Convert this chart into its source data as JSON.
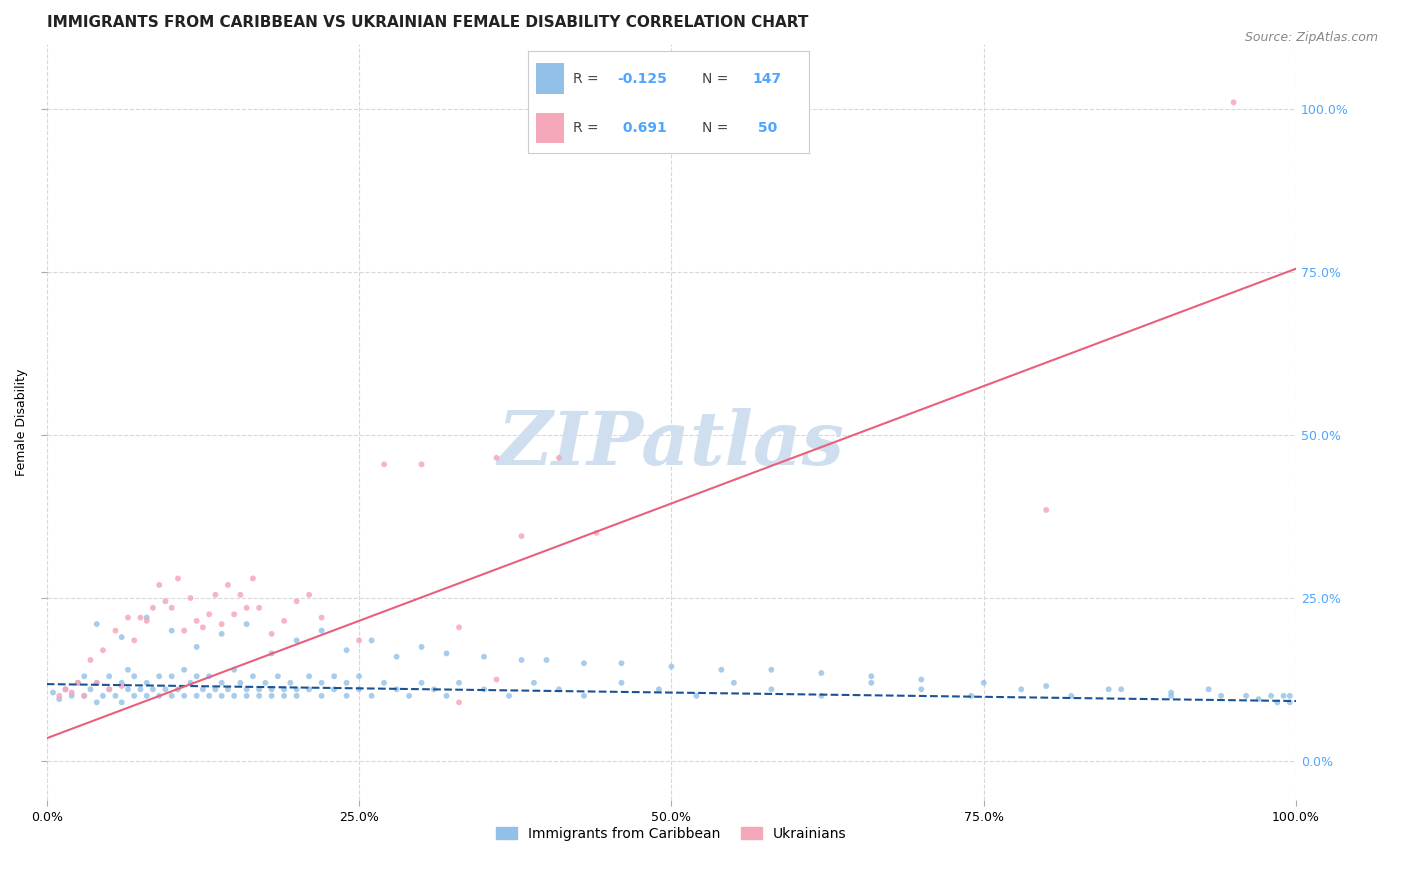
{
  "title": "IMMIGRANTS FROM CARIBBEAN VS UKRAINIAN FEMALE DISABILITY CORRELATION CHART",
  "source": "Source: ZipAtlas.com",
  "ylabel": "Female Disability",
  "yticks": [
    "0.0%",
    "25.0%",
    "50.0%",
    "75.0%",
    "100.0%"
  ],
  "ytick_vals": [
    0.0,
    0.25,
    0.5,
    0.75,
    1.0
  ],
  "xtick_vals": [
    0.0,
    0.25,
    0.5,
    0.75,
    1.0
  ],
  "xtick_labels": [
    "0.0%",
    "25.0%",
    "50.0%",
    "75.0%",
    "100.0%"
  ],
  "xlim": [
    0.0,
    1.0
  ],
  "ylim": [
    -0.06,
    1.1
  ],
  "legend_labels": [
    "Immigrants from Caribbean",
    "Ukrainians"
  ],
  "blue_color": "#92c0e8",
  "pink_color": "#f5a8ba",
  "blue_line_color": "#1a5294",
  "pink_line_color": "#e8607a",
  "grid_color": "#d8d8d8",
  "watermark_color": "#d0dff0",
  "background_color": "#ffffff",
  "blue_scatter_x": [
    0.005,
    0.01,
    0.015,
    0.02,
    0.025,
    0.03,
    0.03,
    0.035,
    0.04,
    0.04,
    0.045,
    0.05,
    0.05,
    0.055,
    0.06,
    0.06,
    0.065,
    0.065,
    0.07,
    0.07,
    0.075,
    0.08,
    0.08,
    0.085,
    0.09,
    0.09,
    0.095,
    0.1,
    0.1,
    0.105,
    0.11,
    0.11,
    0.115,
    0.12,
    0.12,
    0.125,
    0.13,
    0.13,
    0.135,
    0.14,
    0.14,
    0.145,
    0.15,
    0.15,
    0.155,
    0.16,
    0.16,
    0.165,
    0.17,
    0.17,
    0.175,
    0.18,
    0.18,
    0.185,
    0.19,
    0.19,
    0.195,
    0.2,
    0.2,
    0.21,
    0.21,
    0.22,
    0.22,
    0.23,
    0.23,
    0.24,
    0.24,
    0.25,
    0.25,
    0.26,
    0.27,
    0.28,
    0.29,
    0.3,
    0.31,
    0.32,
    0.33,
    0.35,
    0.37,
    0.39,
    0.41,
    0.43,
    0.46,
    0.49,
    0.52,
    0.55,
    0.58,
    0.62,
    0.66,
    0.7,
    0.74,
    0.78,
    0.82,
    0.86,
    0.9,
    0.93,
    0.96,
    0.98,
    0.99,
    0.995,
    0.04,
    0.06,
    0.08,
    0.1,
    0.12,
    0.14,
    0.16,
    0.18,
    0.2,
    0.22,
    0.24,
    0.26,
    0.28,
    0.3,
    0.32,
    0.35,
    0.38,
    0.4,
    0.43,
    0.46,
    0.5,
    0.54,
    0.58,
    0.62,
    0.66,
    0.7,
    0.75,
    0.8,
    0.85,
    0.9,
    0.94,
    0.97,
    0.985,
    0.995
  ],
  "blue_scatter_y": [
    0.105,
    0.095,
    0.11,
    0.1,
    0.12,
    0.1,
    0.13,
    0.11,
    0.09,
    0.12,
    0.1,
    0.11,
    0.13,
    0.1,
    0.12,
    0.09,
    0.11,
    0.14,
    0.1,
    0.13,
    0.11,
    0.1,
    0.12,
    0.11,
    0.1,
    0.13,
    0.11,
    0.1,
    0.13,
    0.11,
    0.1,
    0.14,
    0.12,
    0.1,
    0.13,
    0.11,
    0.1,
    0.13,
    0.11,
    0.1,
    0.12,
    0.11,
    0.1,
    0.14,
    0.12,
    0.11,
    0.1,
    0.13,
    0.11,
    0.1,
    0.12,
    0.11,
    0.1,
    0.13,
    0.11,
    0.1,
    0.12,
    0.11,
    0.1,
    0.13,
    0.11,
    0.12,
    0.1,
    0.13,
    0.11,
    0.12,
    0.1,
    0.11,
    0.13,
    0.1,
    0.12,
    0.11,
    0.1,
    0.12,
    0.11,
    0.1,
    0.12,
    0.11,
    0.1,
    0.12,
    0.11,
    0.1,
    0.12,
    0.11,
    0.1,
    0.12,
    0.11,
    0.1,
    0.12,
    0.11,
    0.1,
    0.11,
    0.1,
    0.11,
    0.1,
    0.11,
    0.1,
    0.1,
    0.1,
    0.1,
    0.21,
    0.19,
    0.22,
    0.2,
    0.175,
    0.195,
    0.21,
    0.165,
    0.185,
    0.2,
    0.17,
    0.185,
    0.16,
    0.175,
    0.165,
    0.16,
    0.155,
    0.155,
    0.15,
    0.15,
    0.145,
    0.14,
    0.14,
    0.135,
    0.13,
    0.125,
    0.12,
    0.115,
    0.11,
    0.105,
    0.1,
    0.095,
    0.09,
    0.09
  ],
  "pink_scatter_x": [
    0.01,
    0.015,
    0.02,
    0.025,
    0.03,
    0.035,
    0.04,
    0.045,
    0.05,
    0.055,
    0.06,
    0.065,
    0.07,
    0.075,
    0.08,
    0.085,
    0.09,
    0.095,
    0.1,
    0.105,
    0.11,
    0.115,
    0.12,
    0.125,
    0.13,
    0.135,
    0.14,
    0.145,
    0.15,
    0.155,
    0.16,
    0.165,
    0.17,
    0.18,
    0.19,
    0.2,
    0.21,
    0.22,
    0.25,
    0.27,
    0.3,
    0.33,
    0.36,
    0.38,
    0.41,
    0.44,
    0.36,
    0.33,
    0.8,
    0.95
  ],
  "pink_scatter_y": [
    0.1,
    0.11,
    0.105,
    0.12,
    0.1,
    0.155,
    0.12,
    0.17,
    0.11,
    0.2,
    0.115,
    0.22,
    0.185,
    0.22,
    0.215,
    0.235,
    0.27,
    0.245,
    0.235,
    0.28,
    0.2,
    0.25,
    0.215,
    0.205,
    0.225,
    0.255,
    0.21,
    0.27,
    0.225,
    0.255,
    0.235,
    0.28,
    0.235,
    0.195,
    0.215,
    0.245,
    0.255,
    0.22,
    0.185,
    0.455,
    0.455,
    0.205,
    0.465,
    0.345,
    0.465,
    0.35,
    0.125,
    0.09,
    0.385,
    1.01
  ],
  "blue_line_x": [
    0.0,
    1.0
  ],
  "blue_line_y": [
    0.118,
    0.092
  ],
  "pink_line_x": [
    0.0,
    1.0
  ],
  "pink_line_y": [
    0.035,
    0.755
  ],
  "title_fontsize": 11,
  "source_fontsize": 9,
  "axis_label_fontsize": 9,
  "tick_fontsize": 9
}
